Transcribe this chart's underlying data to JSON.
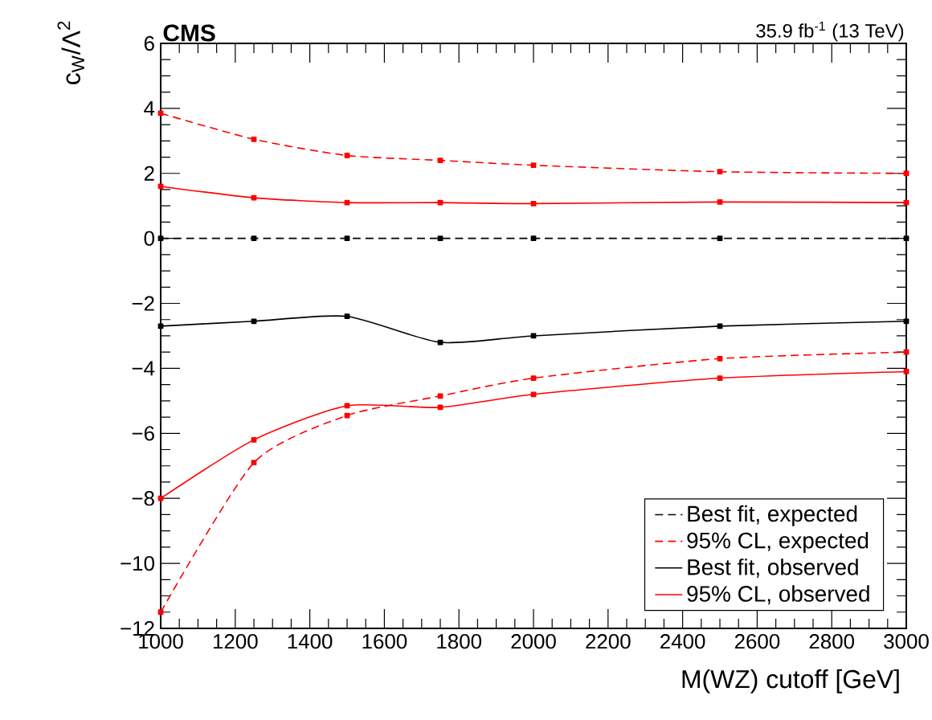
{
  "chart_data": {
    "type": "line",
    "title": "CMS",
    "annotations": [
      "35.9 fb$^{-1}$ (13 TeV)"
    ],
    "xlabel": "M(WZ) cutoff [GeV]",
    "ylabel": "c$_{W}$/Λ$^{2}$",
    "x": [
      1000,
      1250,
      1500,
      1750,
      2000,
      2500,
      3000
    ],
    "series": [
      {
        "name": "Best fit, expected",
        "color": "#000000",
        "line_style": "dashed",
        "values": [
          0,
          0,
          0,
          0,
          0,
          0,
          0
        ]
      },
      {
        "name": "95% CL, expected",
        "color": "#ff0000",
        "line_style": "dashed",
        "values": [
          3.85,
          3.05,
          2.55,
          2.4,
          2.25,
          2.05,
          2.0
        ]
      },
      {
        "color": "#ff0000",
        "line_style": "dashed",
        "values": [
          -11.5,
          -6.9,
          -5.45,
          -4.85,
          -4.3,
          -3.7,
          -3.5
        ]
      },
      {
        "name": "Best fit, observed",
        "color": "#000000",
        "line_style": "solid",
        "values": [
          -2.7,
          -2.55,
          -2.4,
          -3.2,
          -3.0,
          -2.7,
          -2.55
        ]
      },
      {
        "name": "95% CL, observed",
        "color": "#ff0000",
        "line_style": "solid",
        "values": [
          1.6,
          1.25,
          1.1,
          1.1,
          1.07,
          1.12,
          1.1
        ]
      },
      {
        "color": "#ff0000",
        "line_style": "solid",
        "values": [
          -8.0,
          -6.2,
          -5.15,
          -5.2,
          -4.8,
          -4.3,
          -4.1
        ]
      }
    ],
    "xlim": [
      1000,
      3000
    ],
    "xticks": [
      1000,
      1200,
      1400,
      1600,
      1800,
      2000,
      2200,
      2400,
      2600,
      2800,
      3000
    ],
    "ylim": [
      -12,
      6
    ],
    "yticks": [
      {
        "value": -12,
        "label": "−12"
      },
      {
        "value": -10,
        "label": "−10"
      },
      {
        "value": -8,
        "label": "−8"
      },
      {
        "value": -6,
        "label": "−6"
      },
      {
        "value": -4,
        "label": "−4"
      },
      {
        "value": -2,
        "label": "−2"
      },
      0,
      2,
      4,
      6
    ],
    "marker": "square",
    "legend": "bottom right",
    "grid": false
  }
}
